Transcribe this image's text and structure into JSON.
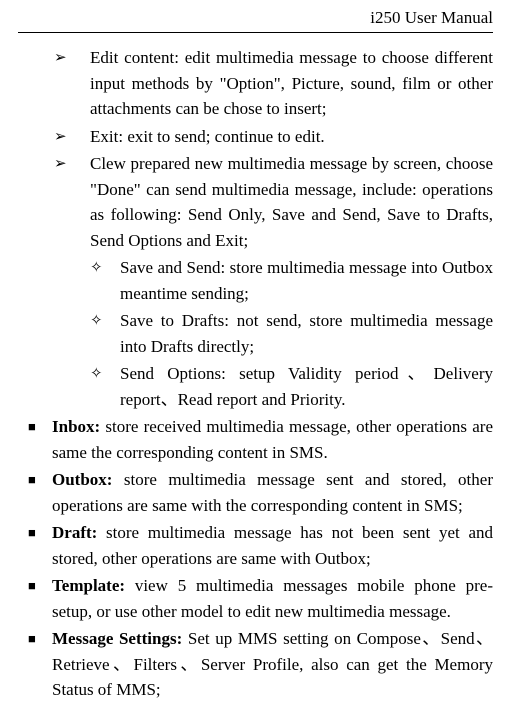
{
  "header": "i250 User Manual",
  "l1_0_b": "Edit content:",
  "l1_0_r": " edit multimedia message to choose different input methods by \"Option\", Picture, sound, film or other attachments can be chose to insert;",
  "l1_1_b": "Exit:",
  "l1_1_r": " exit to send; continue to edit.",
  "l1_2": "Clew prepared new multimedia message by screen, choose \"Done\" can send multimedia message, include: operations as following: Send Only, Save and Send, Save to Drafts, Send Options and Exit;",
  "l2_0": "Save and Send: store multimedia message into Outbox meantime sending;",
  "l2_1": "Save to Drafts: not send, store multimedia message into Drafts directly;",
  "l2_2": "Send Options: setup Validity period、Delivery report、Read report and Priority.",
  "s_0_b": "Inbox:",
  "s_0_r": " store received multimedia message, other operations are same the corresponding content in SMS.",
  "s_1_b": "Outbox:",
  "s_1_r": " store multimedia message sent and stored, other operations are same with the corresponding content in SMS;",
  "s_2_b": "Draft:",
  "s_2_r": " store multimedia message has not been sent yet and stored, other operations are same with Outbox;",
  "s_3_b": "Template:",
  "s_3_r": " view 5 multimedia messages mobile phone pre-setup, or use other model to edit new multimedia message.",
  "s_4_b": "Message Settings:",
  "s_4_r": " Set up MMS setting on Compose、Send、Retrieve、Filters、Server Profile, also can get the Memory Status of MMS;"
}
